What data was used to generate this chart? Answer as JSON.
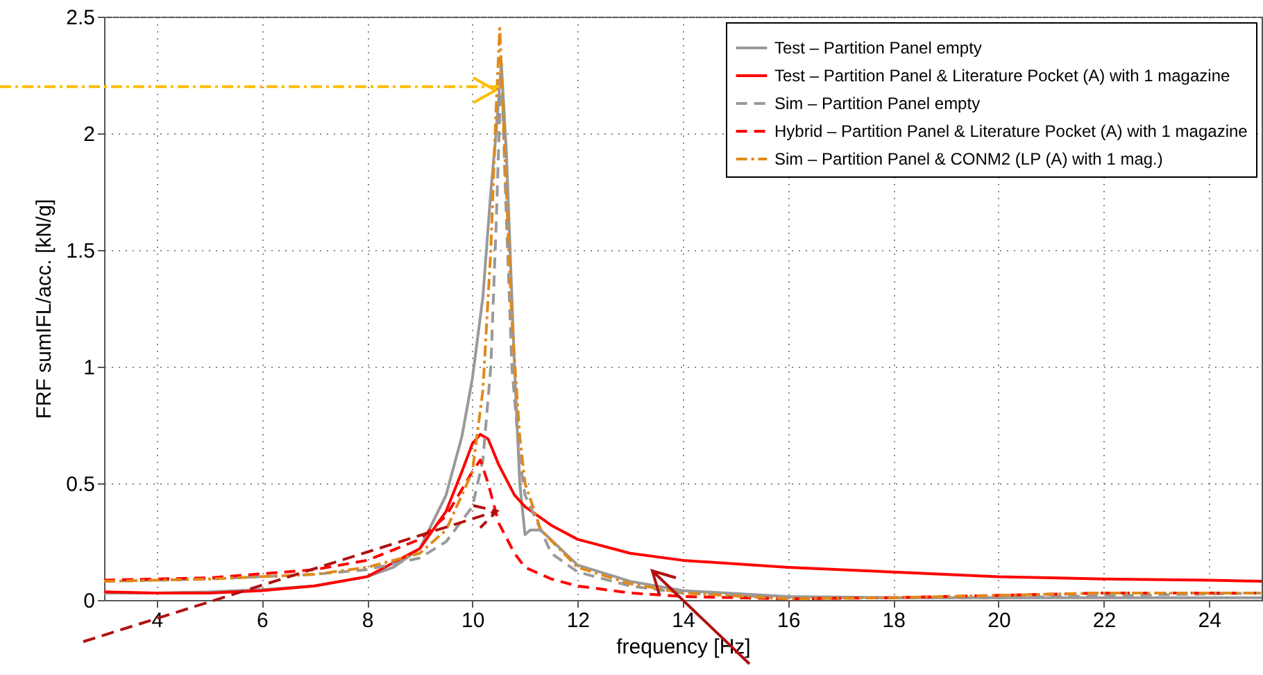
{
  "chart_data": {
    "type": "line",
    "xlabel": "frequency [Hz]",
    "ylabel": "FRF sumIFL/acc. [kN/g]",
    "xlim": [
      3,
      25
    ],
    "xticks": [
      4,
      6,
      8,
      10,
      12,
      14,
      16,
      18,
      20,
      22,
      24
    ],
    "ref_lines": [
      {
        "axis": "y",
        "value": 2.2,
        "color": "#ffbb00",
        "line_style": "dashdot"
      }
    ],
    "ylim": [
      0,
      2.5
    ],
    "yticks": [
      0,
      0.5,
      1,
      1.5,
      2,
      2.5
    ],
    "grid": true,
    "legend": "top right",
    "series": [
      {
        "name": "Test    – Partition Panel empty",
        "color": "#999999",
        "line_style": "solid",
        "x": [
          3,
          4,
          5,
          6,
          7,
          8,
          8.5,
          9,
          9.5,
          9.8,
          10,
          10.2,
          10.3,
          10.35,
          10.45,
          10.55,
          10.65,
          10.8,
          10.9,
          11,
          11.1,
          11.3,
          12,
          13,
          14,
          16,
          18,
          20,
          25
        ],
        "values": [
          0.03,
          0.03,
          0.035,
          0.045,
          0.06,
          0.1,
          0.14,
          0.22,
          0.45,
          0.7,
          0.95,
          1.3,
          1.6,
          1.75,
          2.0,
          2.3,
          1.9,
          1.0,
          0.5,
          0.28,
          0.3,
          0.3,
          0.15,
          0.08,
          0.04,
          0.015,
          0.01,
          0.01,
          0.01
        ]
      },
      {
        "name": "Test    – Partition Panel & Literature Pocket (A) with 1 magazine",
        "color": "#ff0000",
        "line_style": "solid",
        "x": [
          3,
          4,
          5,
          6,
          7,
          8,
          9,
          9.5,
          9.8,
          10,
          10.15,
          10.3,
          10.5,
          10.8,
          11,
          11.5,
          12,
          13,
          14,
          16,
          18,
          20,
          22,
          24,
          25
        ],
        "values": [
          0.035,
          0.03,
          0.03,
          0.04,
          0.06,
          0.1,
          0.22,
          0.38,
          0.55,
          0.67,
          0.71,
          0.69,
          0.58,
          0.45,
          0.4,
          0.32,
          0.26,
          0.2,
          0.17,
          0.14,
          0.12,
          0.1,
          0.09,
          0.085,
          0.08
        ]
      },
      {
        "name": "Sim     – Partition Panel empty",
        "color": "#999999",
        "line_style": "dashed",
        "x": [
          3,
          5,
          7,
          8,
          9,
          9.5,
          10,
          10.2,
          10.35,
          10.45,
          10.55,
          10.62,
          10.75,
          10.9,
          11,
          11.5,
          12,
          13,
          14,
          16,
          20,
          25
        ],
        "values": [
          0.08,
          0.09,
          0.11,
          0.13,
          0.18,
          0.25,
          0.4,
          0.6,
          1.0,
          1.6,
          2.3,
          1.8,
          1.0,
          0.6,
          0.45,
          0.2,
          0.12,
          0.06,
          0.03,
          0.01,
          0.01,
          0.03
        ]
      },
      {
        "name": "Hybrid – Partition Panel & Literature Pocket (A) with 1 magazine",
        "color": "#ff0000",
        "line_style": "dashed",
        "x": [
          3,
          5,
          7,
          8,
          9,
          9.5,
          10,
          10.15,
          10.3,
          10.5,
          10.8,
          11,
          11.5,
          12,
          13,
          14,
          16,
          18,
          20,
          22,
          25
        ],
        "values": [
          0.085,
          0.095,
          0.13,
          0.17,
          0.26,
          0.36,
          0.55,
          0.6,
          0.5,
          0.33,
          0.2,
          0.14,
          0.09,
          0.06,
          0.03,
          0.015,
          0.005,
          0.01,
          0.02,
          0.03,
          0.03
        ]
      },
      {
        "name": "Sim     – Partition Panel & CONM2 (LP (A) with 1 mag.)",
        "color": "#e08a1a",
        "line_style": "dashdot",
        "x": [
          3,
          5,
          7,
          8,
          9,
          9.5,
          10,
          10.2,
          10.35,
          10.45,
          10.52,
          10.6,
          10.75,
          10.9,
          11,
          11.3,
          12,
          13,
          14,
          16,
          18,
          20,
          22,
          25
        ],
        "values": [
          0.08,
          0.09,
          0.11,
          0.14,
          0.2,
          0.3,
          0.55,
          0.9,
          1.5,
          2.1,
          2.45,
          2.0,
          1.2,
          0.7,
          0.5,
          0.3,
          0.14,
          0.07,
          0.03,
          0.005,
          0.01,
          0.02,
          0.03,
          0.03
        ]
      }
    ]
  }
}
